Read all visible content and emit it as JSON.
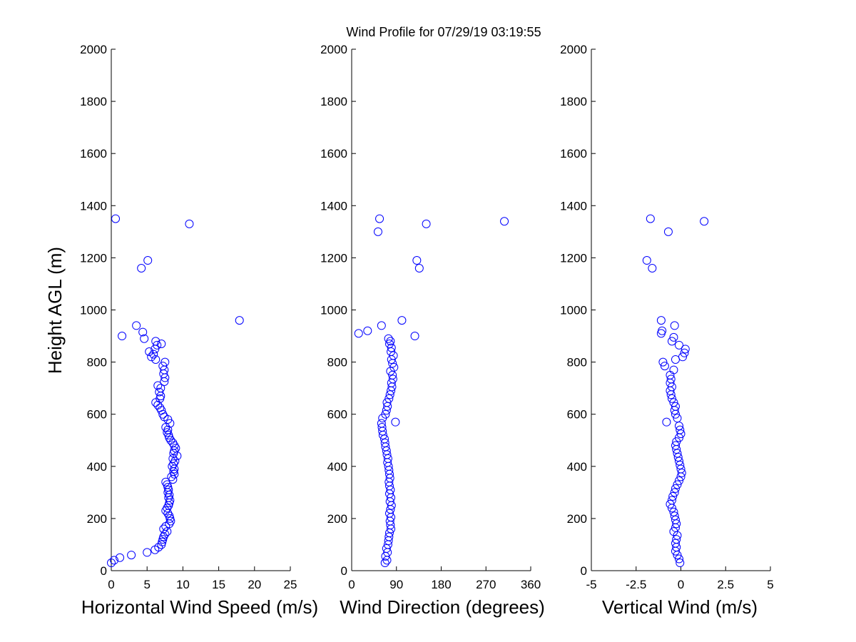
{
  "title": "Wind Profile for  07/29/19 03:19:55",
  "ylabel": "Height AGL (m)",
  "marker_color": "#0000ff",
  "chart_data": [
    {
      "type": "scatter",
      "xlabel": "Horizontal Wind Speed (m/s)",
      "xlim": [
        0,
        25
      ],
      "ylim": [
        0,
        2000
      ],
      "xticks": [
        0,
        5,
        10,
        15,
        20,
        25
      ],
      "xtick_labels": [
        "0",
        "5",
        "10",
        "15",
        "20",
        "25"
      ],
      "yticks": [
        0,
        200,
        400,
        600,
        800,
        1000,
        1200,
        1400,
        1600,
        1800,
        2000
      ],
      "ytick_labels": [
        "0",
        "200",
        "400",
        "600",
        "800",
        "1000",
        "1200",
        "1400",
        "1600",
        "1800",
        "2000"
      ],
      "points": [
        [
          0.0,
          30
        ],
        [
          0.4,
          40
        ],
        [
          1.2,
          50
        ],
        [
          2.8,
          60
        ],
        [
          5.0,
          70
        ],
        [
          6.1,
          80
        ],
        [
          6.6,
          90
        ],
        [
          7.0,
          100
        ],
        [
          7.1,
          110
        ],
        [
          7.2,
          120
        ],
        [
          7.3,
          130
        ],
        [
          7.5,
          140
        ],
        [
          7.8,
          150
        ],
        [
          7.3,
          160
        ],
        [
          7.6,
          170
        ],
        [
          8.1,
          180
        ],
        [
          8.3,
          190
        ],
        [
          8.2,
          200
        ],
        [
          8.1,
          210
        ],
        [
          7.9,
          220
        ],
        [
          7.6,
          230
        ],
        [
          7.8,
          240
        ],
        [
          8.0,
          250
        ],
        [
          8.1,
          260
        ],
        [
          8.2,
          270
        ],
        [
          8.0,
          280
        ],
        [
          8.1,
          290
        ],
        [
          7.9,
          300
        ],
        [
          8.0,
          310
        ],
        [
          7.9,
          320
        ],
        [
          7.8,
          330
        ],
        [
          7.6,
          340
        ],
        [
          8.6,
          350
        ],
        [
          8.4,
          360
        ],
        [
          8.8,
          370
        ],
        [
          8.7,
          380
        ],
        [
          8.8,
          390
        ],
        [
          8.5,
          400
        ],
        [
          8.7,
          410
        ],
        [
          8.9,
          420
        ],
        [
          8.6,
          430
        ],
        [
          9.2,
          440
        ],
        [
          8.7,
          450
        ],
        [
          8.8,
          460
        ],
        [
          9.0,
          470
        ],
        [
          8.8,
          480
        ],
        [
          8.6,
          490
        ],
        [
          8.3,
          500
        ],
        [
          8.1,
          510
        ],
        [
          8.0,
          520
        ],
        [
          7.8,
          530
        ],
        [
          7.9,
          540
        ],
        [
          7.6,
          550
        ],
        [
          8.2,
          565
        ],
        [
          7.9,
          580
        ],
        [
          7.4,
          590
        ],
        [
          7.2,
          600
        ],
        [
          7.0,
          615
        ],
        [
          6.8,
          625
        ],
        [
          6.5,
          635
        ],
        [
          6.2,
          645
        ],
        [
          6.8,
          660
        ],
        [
          6.9,
          670
        ],
        [
          6.7,
          685
        ],
        [
          6.9,
          700
        ],
        [
          6.5,
          710
        ],
        [
          7.4,
          725
        ],
        [
          7.5,
          740
        ],
        [
          7.3,
          755
        ],
        [
          7.4,
          770
        ],
        [
          7.2,
          785
        ],
        [
          7.5,
          800
        ],
        [
          6.2,
          810
        ],
        [
          5.6,
          820
        ],
        [
          5.9,
          830
        ],
        [
          5.3,
          840
        ],
        [
          6.1,
          850
        ],
        [
          6.4,
          865
        ],
        [
          7.0,
          870
        ],
        [
          6.2,
          880
        ],
        [
          4.6,
          890
        ],
        [
          1.5,
          900
        ],
        [
          4.4,
          915
        ],
        [
          3.5,
          940
        ],
        [
          17.9,
          960
        ],
        [
          4.2,
          1160
        ],
        [
          5.1,
          1190
        ],
        [
          10.9,
          1330
        ],
        [
          0.6,
          1350
        ]
      ]
    },
    {
      "type": "scatter",
      "xlabel": "Wind Direction (degrees)",
      "xlim": [
        0,
        360
      ],
      "ylim": [
        0,
        2000
      ],
      "xticks": [
        0,
        90,
        180,
        270,
        360
      ],
      "xtick_labels": [
        "0",
        "90",
        "180",
        "270",
        "360"
      ],
      "yticks": [
        0,
        200,
        400,
        600,
        800,
        1000,
        1200,
        1400,
        1600,
        1800,
        2000
      ],
      "ytick_labels": [
        "0",
        "200",
        "400",
        "600",
        "800",
        "1000",
        "1200",
        "1400",
        "1600",
        "1800",
        "2000"
      ],
      "points": [
        [
          67,
          30
        ],
        [
          71,
          40
        ],
        [
          68,
          55
        ],
        [
          72,
          70
        ],
        [
          70,
          85
        ],
        [
          73,
          100
        ],
        [
          74,
          115
        ],
        [
          75,
          130
        ],
        [
          76,
          145
        ],
        [
          79,
          160
        ],
        [
          78,
          175
        ],
        [
          77,
          190
        ],
        [
          79,
          205
        ],
        [
          76,
          220
        ],
        [
          78,
          235
        ],
        [
          80,
          250
        ],
        [
          77,
          265
        ],
        [
          79,
          280
        ],
        [
          76,
          295
        ],
        [
          78,
          310
        ],
        [
          76,
          325
        ],
        [
          75,
          340
        ],
        [
          77,
          355
        ],
        [
          76,
          370
        ],
        [
          75,
          385
        ],
        [
          74,
          400
        ],
        [
          72,
          415
        ],
        [
          73,
          430
        ],
        [
          71,
          445
        ],
        [
          70,
          460
        ],
        [
          68,
          475
        ],
        [
          67,
          490
        ],
        [
          66,
          505
        ],
        [
          63,
          520
        ],
        [
          62,
          535
        ],
        [
          61,
          550
        ],
        [
          60,
          565
        ],
        [
          88,
          570
        ],
        [
          62,
          585
        ],
        [
          68,
          600
        ],
        [
          70,
          615
        ],
        [
          72,
          630
        ],
        [
          71,
          645
        ],
        [
          75,
          660
        ],
        [
          77,
          675
        ],
        [
          79,
          690
        ],
        [
          81,
          705
        ],
        [
          80,
          720
        ],
        [
          83,
          735
        ],
        [
          82,
          750
        ],
        [
          78,
          765
        ],
        [
          85,
          780
        ],
        [
          82,
          795
        ],
        [
          80,
          810
        ],
        [
          84,
          825
        ],
        [
          79,
          840
        ],
        [
          80,
          855
        ],
        [
          76,
          870
        ],
        [
          78,
          880
        ],
        [
          74,
          890
        ],
        [
          127,
          900
        ],
        [
          14,
          910
        ],
        [
          32,
          920
        ],
        [
          60,
          940
        ],
        [
          101,
          960
        ],
        [
          136,
          1160
        ],
        [
          131,
          1190
        ],
        [
          53,
          1300
        ],
        [
          150,
          1330
        ],
        [
          307,
          1340
        ],
        [
          56,
          1350
        ]
      ]
    },
    {
      "type": "scatter",
      "xlabel": "Vertical Wind (m/s)",
      "xlim": [
        -5,
        5
      ],
      "ylim": [
        0,
        2000
      ],
      "xticks": [
        -5,
        -2.5,
        0,
        2.5,
        5
      ],
      "xtick_labels": [
        "-5",
        "-2.5",
        "0",
        "2.5",
        "5"
      ],
      "yticks": [
        0,
        200,
        400,
        600,
        800,
        1000,
        1200,
        1400,
        1600,
        1800,
        2000
      ],
      "ytick_labels": [
        "0",
        "200",
        "400",
        "600",
        "800",
        "1000",
        "1200",
        "1400",
        "1600",
        "1800",
        "2000"
      ],
      "points": [
        [
          -0.05,
          30
        ],
        [
          -0.1,
          45
        ],
        [
          -0.2,
          60
        ],
        [
          -0.3,
          75
        ],
        [
          -0.25,
          90
        ],
        [
          -0.3,
          105
        ],
        [
          -0.25,
          120
        ],
        [
          -0.2,
          135
        ],
        [
          -0.4,
          150
        ],
        [
          -0.3,
          165
        ],
        [
          -0.25,
          180
        ],
        [
          -0.3,
          195
        ],
        [
          -0.35,
          210
        ],
        [
          -0.4,
          225
        ],
        [
          -0.5,
          240
        ],
        [
          -0.6,
          255
        ],
        [
          -0.5,
          270
        ],
        [
          -0.45,
          285
        ],
        [
          -0.35,
          300
        ],
        [
          -0.3,
          315
        ],
        [
          -0.2,
          330
        ],
        [
          -0.1,
          345
        ],
        [
          0.0,
          360
        ],
        [
          0.05,
          375
        ],
        [
          0.0,
          390
        ],
        [
          -0.05,
          405
        ],
        [
          -0.1,
          420
        ],
        [
          -0.15,
          435
        ],
        [
          -0.2,
          450
        ],
        [
          -0.25,
          465
        ],
        [
          -0.3,
          480
        ],
        [
          -0.25,
          495
        ],
        [
          -0.1,
          510
        ],
        [
          0.0,
          525
        ],
        [
          -0.05,
          540
        ],
        [
          -0.1,
          555
        ],
        [
          -0.8,
          570
        ],
        [
          -0.2,
          585
        ],
        [
          -0.3,
          600
        ],
        [
          -0.35,
          615
        ],
        [
          -0.3,
          630
        ],
        [
          -0.4,
          645
        ],
        [
          -0.5,
          660
        ],
        [
          -0.55,
          675
        ],
        [
          -0.6,
          690
        ],
        [
          -0.5,
          705
        ],
        [
          -0.6,
          720
        ],
        [
          -0.55,
          735
        ],
        [
          -0.6,
          750
        ],
        [
          -0.4,
          770
        ],
        [
          -0.9,
          785
        ],
        [
          -1.0,
          800
        ],
        [
          -0.3,
          810
        ],
        [
          0.1,
          820
        ],
        [
          0.2,
          835
        ],
        [
          0.25,
          850
        ],
        [
          -0.1,
          865
        ],
        [
          -0.5,
          880
        ],
        [
          -0.4,
          895
        ],
        [
          -1.1,
          910
        ],
        [
          -1.05,
          920
        ],
        [
          -0.35,
          940
        ],
        [
          -1.1,
          960
        ],
        [
          -1.6,
          1160
        ],
        [
          -1.9,
          1190
        ],
        [
          -0.7,
          1300
        ],
        [
          1.3,
          1340
        ],
        [
          -1.7,
          1350
        ]
      ]
    }
  ]
}
